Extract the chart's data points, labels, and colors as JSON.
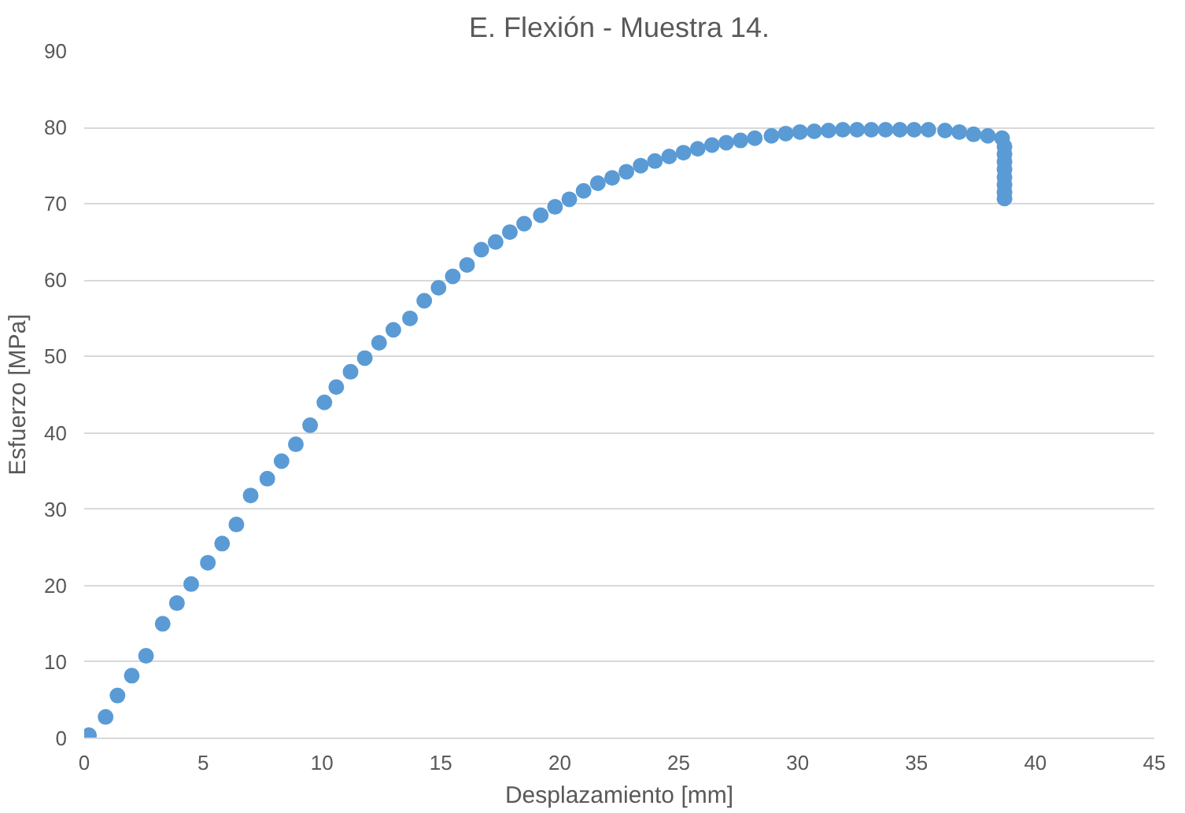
{
  "chart_data": {
    "type": "scatter",
    "title": "E. Flexión - Muestra 14.",
    "xlabel": "Desplazamiento [mm]",
    "ylabel": "Esfuerzo [MPa]",
    "xlim": [
      0,
      45
    ],
    "xticks": [
      0,
      5,
      10,
      15,
      20,
      25,
      30,
      35,
      40,
      45
    ],
    "ylim": [
      0,
      90
    ],
    "yticks": [
      0,
      10,
      20,
      30,
      40,
      50,
      60,
      70,
      80,
      90
    ],
    "grid": "y",
    "marker": "circle",
    "series": [
      {
        "color": "#5b9bd5",
        "x": [
          0.2,
          0.9,
          1.4,
          2,
          2.6,
          3.3,
          3.9,
          4.5,
          5.2,
          5.8,
          6.4,
          7,
          7.7,
          8.3,
          8.9,
          9.5,
          10.1,
          10.6,
          11.2,
          11.8,
          12.4,
          13,
          13.7,
          14.3,
          14.9,
          15.5,
          16.1,
          16.7,
          17.3,
          17.9,
          18.5,
          19.2,
          19.8,
          20.4,
          21,
          21.6,
          22.2,
          22.8,
          23.4,
          24,
          24.6,
          25.2,
          25.8,
          26.4,
          27,
          27.6,
          28.2,
          28.9,
          29.5,
          30.1,
          30.7,
          31.3,
          31.9,
          32.5,
          33.1,
          33.7,
          34.3,
          34.9,
          35.5,
          36.2,
          36.8,
          37.4,
          38,
          38.6,
          38.7,
          38.7,
          38.7,
          38.7,
          38.7,
          38.7,
          38.7,
          38.7
        ],
        "values": [
          0.4,
          2.8,
          5.6,
          8.2,
          10.8,
          15,
          17.7,
          20.2,
          23,
          25.5,
          28,
          31.8,
          34,
          36.3,
          38.5,
          41,
          44,
          46,
          48,
          49.8,
          51.8,
          53.5,
          55,
          57.3,
          59,
          60.5,
          62,
          64,
          65,
          66.3,
          67.4,
          68.5,
          69.6,
          70.6,
          71.7,
          72.7,
          73.4,
          74.2,
          75,
          75.6,
          76.2,
          76.7,
          77.2,
          77.7,
          78,
          78.3,
          78.6,
          78.9,
          79.2,
          79.4,
          79.5,
          79.6,
          79.7,
          79.7,
          79.7,
          79.7,
          79.7,
          79.7,
          79.7,
          79.6,
          79.4,
          79.1,
          78.9,
          78.6,
          77.5,
          76.5,
          75.5,
          74.5,
          73.5,
          72.5,
          71.5,
          70.7
        ]
      }
    ]
  }
}
